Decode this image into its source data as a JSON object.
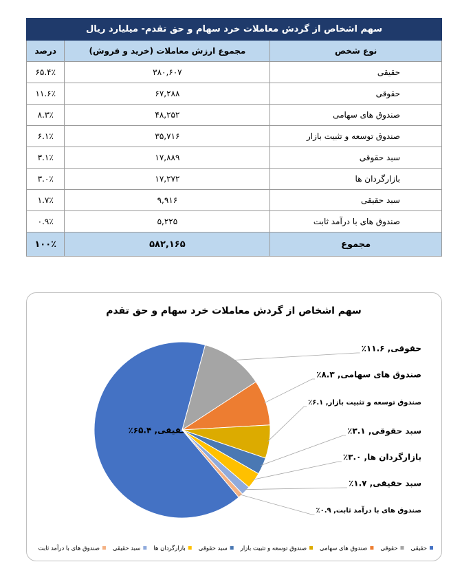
{
  "table": {
    "title": "سهم اشخاص از گردش معاملات خرد سهام و حق تقدم- میلیارد ریال",
    "header": [
      "نوع شخص",
      "مجموع ارزش معاملات (خرید و فروش)",
      "درصد"
    ],
    "rows": [
      [
        "حقیقی",
        "۳۸۰,۶۰۷",
        "۶۵.۴٪"
      ],
      [
        "حقوقی",
        "۶۷,۲۸۸",
        "۱۱.۶٪"
      ],
      [
        "صندوق های سهامی",
        "۴۸,۲۵۲",
        "۸.۳٪"
      ],
      [
        "صندوق توسعه و تثبیت بازار",
        "۳۵,۷۱۶",
        "۶.۱٪"
      ],
      [
        "سبد حقوقی",
        "۱۷,۸۸۹",
        "۳.۱٪"
      ],
      [
        "بازارگردان ها",
        "۱۷,۲۷۲",
        "۳.۰٪"
      ],
      [
        "سبد حقیقی",
        "۹,۹۱۶",
        "۱.۷٪"
      ],
      [
        "صندوق های با درآمد ثابت",
        "۵,۲۲۵",
        "۰.۹٪"
      ]
    ],
    "total": [
      "مجموع",
      "۵۸۲,۱۶۵",
      "۱۰۰٪"
    ]
  },
  "chart_data": {
    "type": "pie",
    "title": "سهم اشخاص از گردش معاملات خرد سهام و حق تقدم",
    "categories": [
      "حقیقی",
      "حقوقی",
      "صندوق های سهامی",
      "صندوق توسعه و تثبیت بازار",
      "سبد حقوقی",
      "بازارگردان ها",
      "سبد حقیقی",
      "صندوق های با درآمد ثابت"
    ],
    "values": [
      65.4,
      11.6,
      8.3,
      6.1,
      3.1,
      3.0,
      1.7,
      0.9
    ],
    "value_labels": [
      "حقیقی, ۶۵.۴٪",
      "حقوقی, ۱۱.۶٪",
      "صندوق های سهامی, ۸.۳٪",
      "صندوق توسعه و تثبیت بازار, ۶.۱٪",
      "سبد حقوقی, ۳.۱٪",
      "بازارگردان ها, ۳.۰٪",
      "سبد حقیقی, ۱.۷٪",
      "صندوق های با درآمد ثابت, ۰.۹٪"
    ],
    "colors": [
      "#4472c4",
      "#a5a5a5",
      "#ed7d31",
      "#dcab00",
      "#4a78b3",
      "#ffc000",
      "#8faadc",
      "#f4b183"
    ],
    "legend": "bottom"
  }
}
